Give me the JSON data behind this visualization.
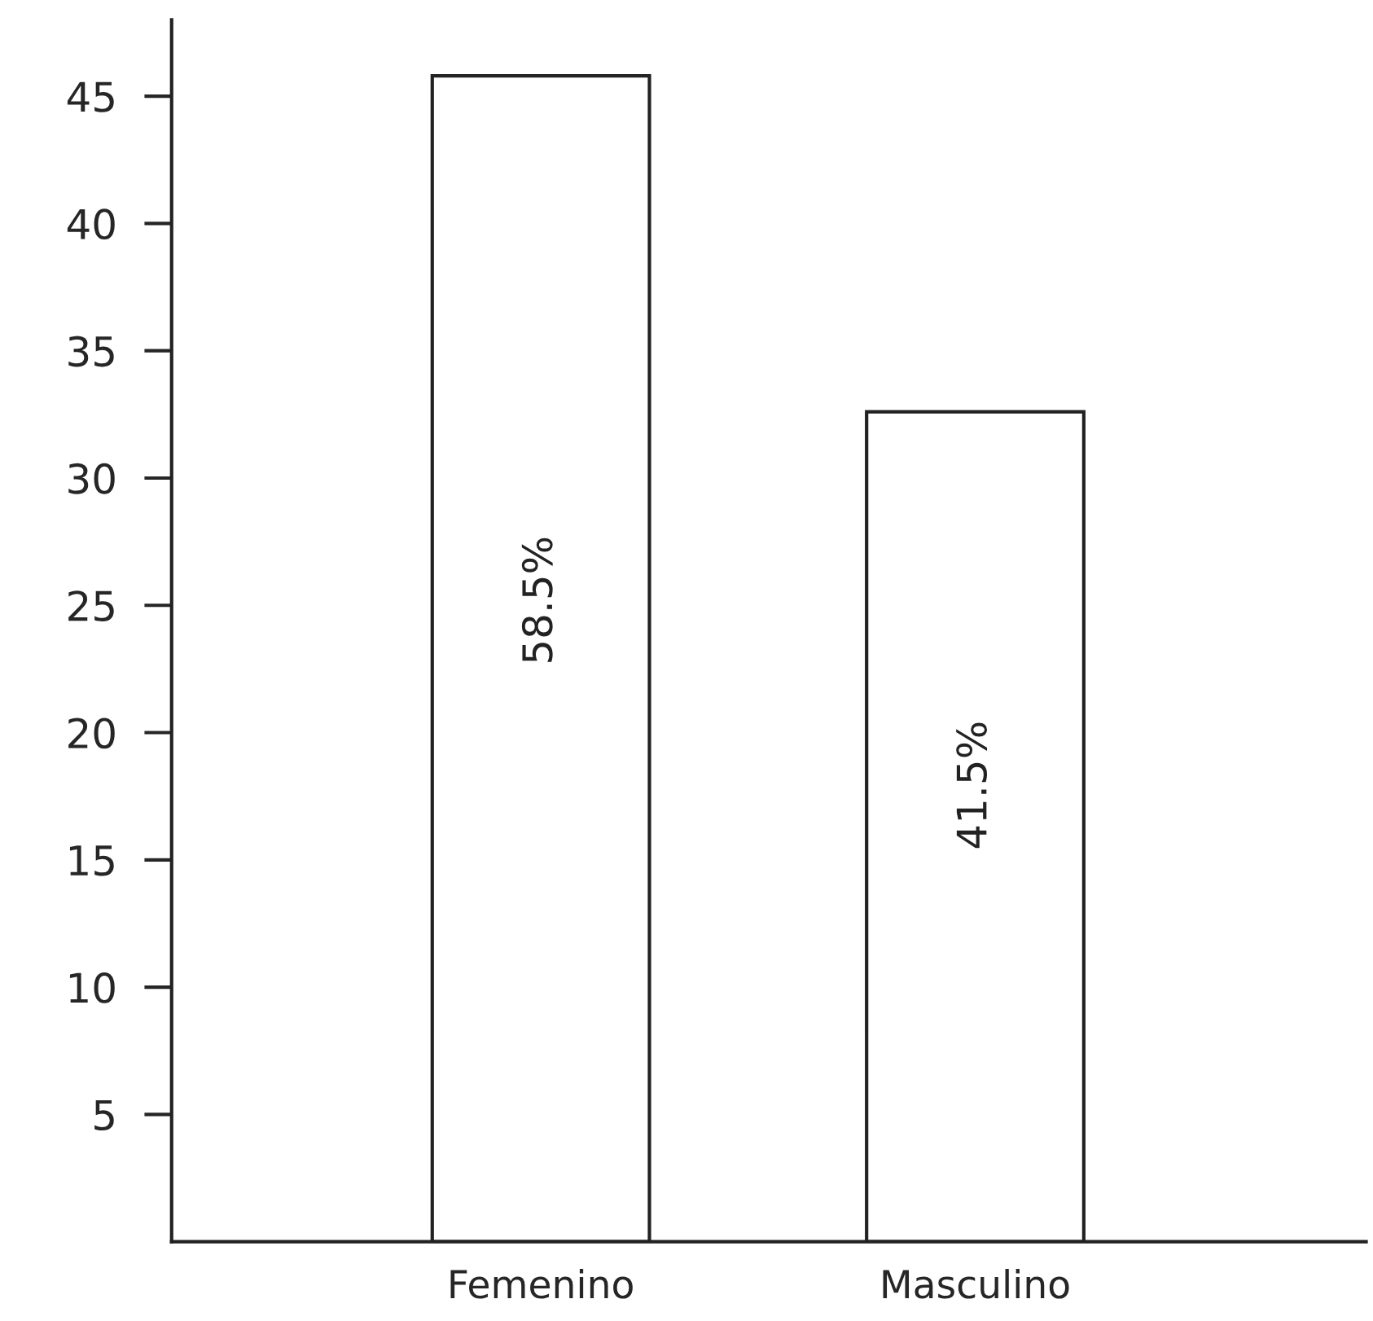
{
  "chart_data": {
    "type": "bar",
    "categories": [
      "Femenino",
      "Masculino"
    ],
    "values": [
      45.8,
      32.6
    ],
    "annotations": [
      "58.5%",
      "41.5%"
    ],
    "color": "#ffffff",
    "ylim": [
      0,
      48
    ],
    "yticks": [
      5,
      10,
      15,
      20,
      25,
      30,
      35,
      40,
      45
    ],
    "grid": false,
    "legend": false
  }
}
